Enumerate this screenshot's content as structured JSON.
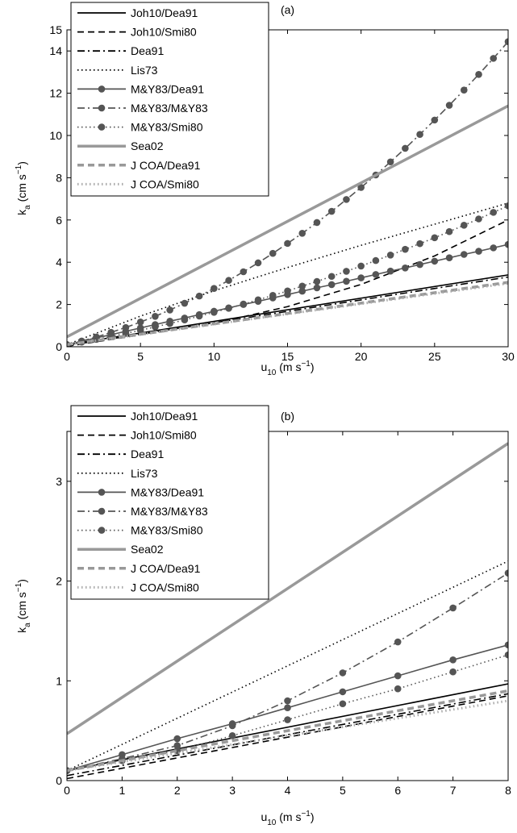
{
  "chart_data": [
    {
      "type": "line",
      "title": "(a)",
      "xlabel": {
        "text": "u",
        "subscript": "10",
        "unit": " (m s",
        "superscript": "−1",
        "close": ")"
      },
      "ylabel": {
        "text": "k",
        "subscript": "a",
        "unit": " (cm s",
        "superscript": "−1",
        "close": ")"
      },
      "xlim": [
        0,
        30
      ],
      "ylim": [
        0,
        15
      ],
      "xticks": [
        0,
        5,
        10,
        15,
        20,
        25,
        30
      ],
      "yticks": [
        0,
        2,
        4,
        6,
        8,
        10,
        12,
        14,
        15
      ],
      "legend": "upper left",
      "series": [
        {
          "name": "Joh10/Dea91",
          "color": "#000000",
          "dash": "solid",
          "x": [
            0,
            30
          ],
          "values": [
            0.1,
            3.4
          ]
        },
        {
          "name": "Joh10/Smi80",
          "color": "#000000",
          "dash": "dashed",
          "x": [
            0,
            10,
            15,
            20,
            25,
            30
          ],
          "values": [
            0.02,
            1.1,
            1.9,
            2.95,
            4.3,
            6.0
          ]
        },
        {
          "name": "Dea91",
          "color": "#000000",
          "dash": "dashdot",
          "x": [
            0,
            30
          ],
          "values": [
            0.05,
            3.3
          ]
        },
        {
          "name": "Lis73",
          "color": "#000000",
          "dash": "dotted",
          "x": [
            0,
            5,
            10,
            15,
            20,
            25,
            30
          ],
          "values": [
            0.1,
            1.45,
            2.65,
            3.75,
            4.8,
            5.8,
            6.8
          ]
        },
        {
          "name": "M&Y83/Dea91",
          "color": "#555555",
          "dash": "solid",
          "marker": "circle",
          "x": [
            0,
            1,
            2,
            3,
            4,
            5,
            6,
            7,
            8,
            9,
            10,
            11,
            12,
            13,
            14,
            15,
            16,
            17,
            18,
            19,
            20,
            21,
            22,
            23,
            24,
            25,
            26,
            27,
            28,
            29,
            30
          ],
          "values": [
            0.1,
            0.26,
            0.42,
            0.57,
            0.73,
            0.89,
            1.05,
            1.21,
            1.36,
            1.52,
            1.68,
            1.84,
            2.0,
            2.15,
            2.31,
            2.47,
            2.63,
            2.79,
            2.94,
            3.1,
            3.26,
            3.42,
            3.58,
            3.73,
            3.89,
            4.05,
            4.21,
            4.37,
            4.52,
            4.68,
            4.84
          ]
        },
        {
          "name": "M&Y83/M&Y83",
          "color": "#555555",
          "dash": "dashdot",
          "marker": "circle",
          "x": [
            0,
            1,
            2,
            3,
            4,
            5,
            6,
            7,
            8,
            9,
            10,
            11,
            12,
            13,
            14,
            15,
            16,
            17,
            18,
            19,
            20,
            21,
            22,
            23,
            24,
            25,
            26,
            27,
            28,
            29,
            30
          ],
          "values": [
            0.1,
            0.27,
            0.46,
            0.68,
            0.91,
            1.17,
            1.44,
            1.74,
            2.06,
            2.4,
            2.76,
            3.14,
            3.55,
            3.97,
            4.42,
            4.89,
            5.37,
            5.88,
            6.41,
            6.97,
            7.54,
            8.13,
            8.75,
            9.39,
            10.05,
            10.73,
            11.43,
            12.15,
            12.89,
            13.65,
            14.44
          ]
        },
        {
          "name": "M&Y83/Smi80",
          "color": "#555555",
          "dash": "dotted",
          "marker": "circle",
          "x": [
            0,
            1,
            2,
            3,
            4,
            5,
            6,
            7,
            8,
            9,
            10,
            11,
            12,
            13,
            14,
            15,
            16,
            17,
            18,
            19,
            20,
            21,
            22,
            23,
            24,
            25,
            26,
            27,
            28,
            29,
            30
          ],
          "values": [
            0.1,
            0.22,
            0.35,
            0.49,
            0.63,
            0.78,
            0.94,
            1.1,
            1.27,
            1.45,
            1.63,
            1.82,
            2.02,
            2.22,
            2.43,
            2.64,
            2.87,
            3.09,
            3.33,
            3.57,
            3.82,
            4.08,
            4.34,
            4.61,
            4.88,
            5.16,
            5.45,
            5.75,
            6.05,
            6.36,
            6.67
          ]
        },
        {
          "name": "Sea02",
          "color": "#999999",
          "dash": "solid",
          "width": 3.5,
          "x": [
            0,
            30
          ],
          "values": [
            0.47,
            11.4
          ]
        },
        {
          "name": "J COA/Dea91",
          "color": "#999999",
          "dash": "dashed",
          "width": 3.5,
          "x": [
            0,
            30
          ],
          "values": [
            0.1,
            3.05
          ]
        },
        {
          "name": "J COA/Smi80",
          "color": "#aaaaaa",
          "dash": "dotted",
          "width": 3,
          "x": [
            0,
            30
          ],
          "values": [
            0.1,
            3.0
          ]
        }
      ]
    },
    {
      "type": "line",
      "title": "(b)",
      "xlabel": {
        "text": "u",
        "subscript": "10",
        "unit": " (m s",
        "superscript": "−1",
        "close": ")"
      },
      "ylabel": {
        "text": "k",
        "subscript": "a",
        "unit": " (cm s",
        "superscript": "−1",
        "close": ")"
      },
      "xlim": [
        0,
        8
      ],
      "ylim": [
        0,
        3.5
      ],
      "xticks": [
        0,
        1,
        2,
        3,
        4,
        5,
        6,
        7,
        8
      ],
      "yticks": [
        0,
        1,
        2,
        3
      ],
      "legend": "upper left",
      "series": [
        {
          "name": "Joh10/Dea91",
          "color": "#000000",
          "dash": "solid",
          "x": [
            0,
            8
          ],
          "values": [
            0.1,
            0.97
          ]
        },
        {
          "name": "Joh10/Smi80",
          "color": "#000000",
          "dash": "dashed",
          "x": [
            0,
            8
          ],
          "values": [
            0.02,
            0.85
          ]
        },
        {
          "name": "Dea91",
          "color": "#000000",
          "dash": "dashdot",
          "x": [
            0,
            8
          ],
          "values": [
            0.05,
            0.87
          ]
        },
        {
          "name": "Lis73",
          "color": "#000000",
          "dash": "dotted",
          "x": [
            0,
            8
          ],
          "values": [
            0.1,
            2.2
          ]
        },
        {
          "name": "M&Y83/Dea91",
          "color": "#555555",
          "dash": "solid",
          "marker": "circle",
          "x": [
            0,
            1,
            2,
            3,
            4,
            5,
            6,
            7,
            8
          ],
          "values": [
            0.1,
            0.26,
            0.42,
            0.57,
            0.73,
            0.89,
            1.05,
            1.21,
            1.36
          ]
        },
        {
          "name": "M&Y83/M&Y83",
          "color": "#555555",
          "dash": "dashdot",
          "marker": "circle",
          "x": [
            0,
            1,
            2,
            3,
            4,
            5,
            6,
            7,
            8
          ],
          "values": [
            0.1,
            0.22,
            0.35,
            0.55,
            0.8,
            1.08,
            1.39,
            1.73,
            2.08
          ]
        },
        {
          "name": "M&Y83/Smi80",
          "color": "#555555",
          "dash": "dotted",
          "marker": "circle",
          "x": [
            0,
            1,
            2,
            3,
            4,
            5,
            6,
            7,
            8
          ],
          "values": [
            0.1,
            0.2,
            0.3,
            0.45,
            0.61,
            0.77,
            0.92,
            1.09,
            1.26
          ]
        },
        {
          "name": "Sea02",
          "color": "#999999",
          "dash": "solid",
          "width": 3.5,
          "x": [
            0,
            8
          ],
          "values": [
            0.47,
            3.38
          ]
        },
        {
          "name": "J COA/Dea91",
          "color": "#999999",
          "dash": "dashed",
          "width": 3.5,
          "x": [
            0,
            8
          ],
          "values": [
            0.1,
            0.9
          ]
        },
        {
          "name": "J COA/Smi80",
          "color": "#aaaaaa",
          "dash": "dotted",
          "width": 3,
          "x": [
            0,
            8
          ],
          "values": [
            0.1,
            0.8
          ]
        }
      ]
    }
  ]
}
